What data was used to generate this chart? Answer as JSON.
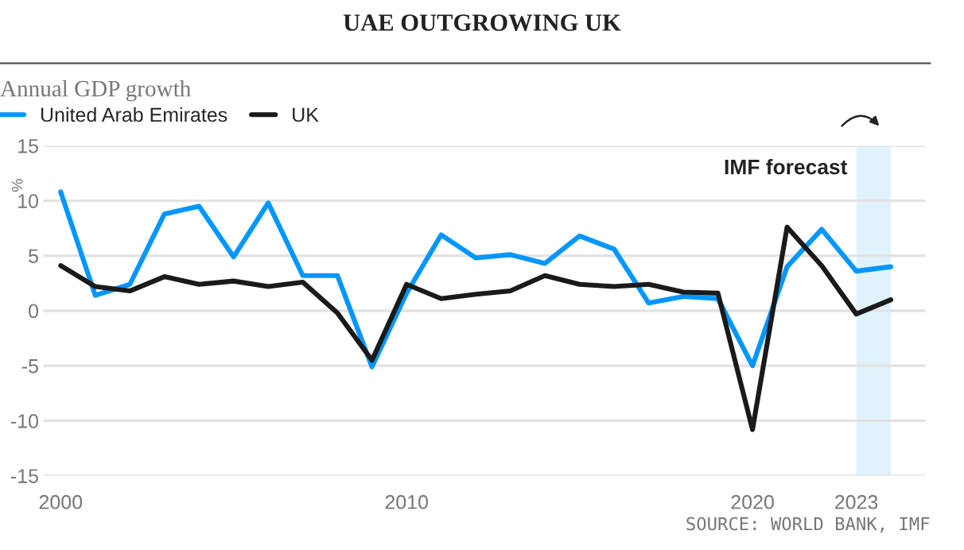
{
  "chart_data": {
    "type": "line",
    "title": "UAE OUTGROWING UK",
    "subtitle": "Annual GDP growth",
    "ylabel": "%",
    "x": [
      2000,
      2001,
      2002,
      2003,
      2004,
      2005,
      2006,
      2007,
      2008,
      2009,
      2010,
      2011,
      2012,
      2013,
      2014,
      2015,
      2016,
      2017,
      2018,
      2019,
      2020,
      2021,
      2022,
      2023,
      2024
    ],
    "series": [
      {
        "name": "United Arab Emirates",
        "color": "#0096ff",
        "values": [
          10.8,
          1.4,
          2.4,
          8.8,
          9.5,
          4.9,
          9.8,
          3.2,
          3.2,
          -5.1,
          1.6,
          6.9,
          4.8,
          5.1,
          4.3,
          6.8,
          5.6,
          0.7,
          1.3,
          1.1,
          -5.0,
          4.0,
          7.4,
          3.6,
          4.0
        ]
      },
      {
        "name": "UK",
        "color": "#1a1a1a",
        "values": [
          4.1,
          2.2,
          1.8,
          3.1,
          2.4,
          2.7,
          2.2,
          2.6,
          -0.2,
          -4.5,
          2.4,
          1.1,
          1.5,
          1.8,
          3.2,
          2.4,
          2.2,
          2.4,
          1.7,
          1.6,
          -10.8,
          7.6,
          4.1,
          -0.3,
          1.0
        ]
      }
    ],
    "xlim": [
      1999.5,
      2025
    ],
    "ylim": [
      -15,
      15
    ],
    "xticks": [
      2000,
      2010,
      2020,
      2023
    ],
    "yticks": [
      15,
      10,
      5,
      0,
      -5,
      -10,
      -15
    ],
    "bands": [
      {
        "axis": "x",
        "from": 2023,
        "to": 2024,
        "label": "IMF forecast",
        "color": "#e0f3fd"
      }
    ],
    "annotations": [
      "SOURCE: WORLD BANK, IMF"
    ],
    "grid": "y",
    "legend": "top left",
    "line_style": "solid",
    "marker": "none"
  }
}
